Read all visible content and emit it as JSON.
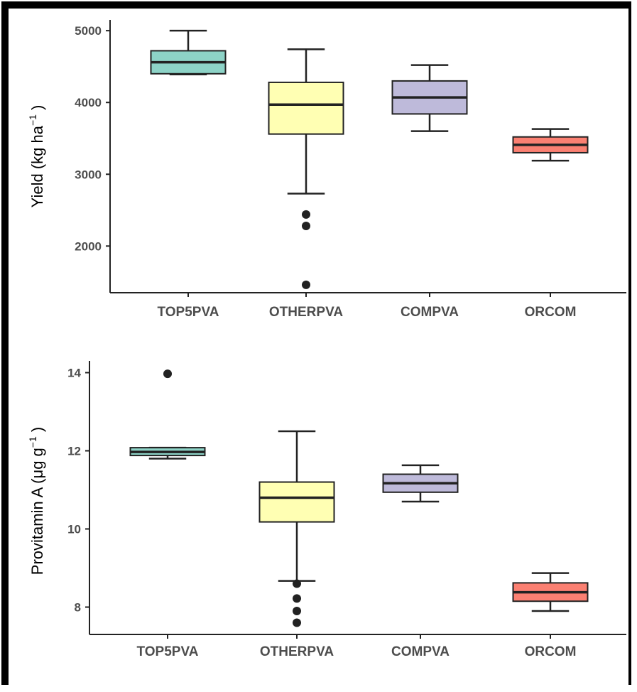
{
  "chart_data": [
    {
      "type": "boxplot",
      "ylabel": "Yield (kg ha",
      "ylabel_sup": "−1",
      "ylabel_close": ")",
      "ylim": [
        1350,
        5150
      ],
      "yticks": [
        2000,
        3000,
        4000,
        5000
      ],
      "categories": [
        "TOP5PVA",
        "OTHERPVA",
        "COMPVA",
        "ORCOM"
      ],
      "colors": [
        "#8dd3c7",
        "#ffffb3",
        "#bebada",
        "#fb8072"
      ],
      "boxes": [
        {
          "min": 4390,
          "q1": 4400,
          "median": 4560,
          "q3": 4720,
          "max": 5000,
          "outliers": []
        },
        {
          "min": 2730,
          "q1": 3560,
          "median": 3970,
          "q3": 4280,
          "max": 4740,
          "outliers": [
            2440,
            2280,
            1460
          ]
        },
        {
          "min": 3600,
          "q1": 3840,
          "median": 4070,
          "q3": 4300,
          "max": 4520,
          "outliers": []
        },
        {
          "min": 3190,
          "q1": 3300,
          "median": 3410,
          "q3": 3520,
          "max": 3630,
          "outliers": []
        }
      ]
    },
    {
      "type": "boxplot",
      "ylabel": "Provitamin A (μg g",
      "ylabel_sup": "−1",
      "ylabel_close": ")",
      "ylim": [
        7.3,
        14.3
      ],
      "yticks": [
        8,
        10,
        12,
        14
      ],
      "categories": [
        "TOP5PVA",
        "OTHERPVA",
        "COMPVA",
        "ORCOM"
      ],
      "colors": [
        "#8dd3c7",
        "#ffffb3",
        "#bebada",
        "#fb8072"
      ],
      "boxes": [
        {
          "min": 11.8,
          "q1": 11.88,
          "median": 11.97,
          "q3": 12.08,
          "max": 12.08,
          "outliers": [
            13.97
          ]
        },
        {
          "min": 8.67,
          "q1": 10.18,
          "median": 10.8,
          "q3": 11.2,
          "max": 12.5,
          "outliers": [
            8.6,
            8.22,
            7.9,
            7.6
          ]
        },
        {
          "min": 10.7,
          "q1": 10.94,
          "median": 11.17,
          "q3": 11.4,
          "max": 11.63,
          "outliers": []
        },
        {
          "min": 7.9,
          "q1": 8.15,
          "median": 8.38,
          "q3": 8.62,
          "max": 8.87,
          "outliers": []
        }
      ]
    }
  ]
}
